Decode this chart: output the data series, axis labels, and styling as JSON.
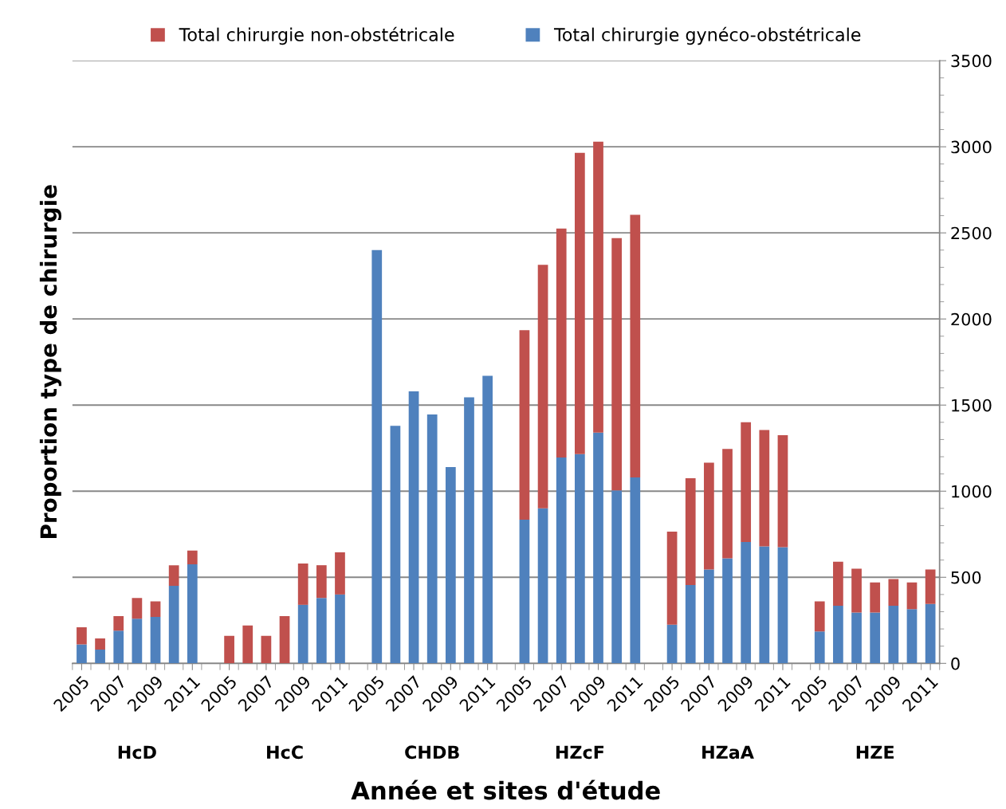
{
  "chart_data": {
    "type": "bar",
    "stacked": true,
    "xlabel": "Année et sites d'étude",
    "ylabel": "Proportion type de chirurgie",
    "categories": [
      "2005",
      null,
      "2007",
      null,
      "2009",
      null,
      "2011",
      null,
      "2005",
      null,
      "2007",
      null,
      "2009",
      null,
      "2011",
      null,
      "2005",
      null,
      "2007",
      null,
      "2009",
      null,
      "2011",
      null,
      "2005",
      null,
      "2007",
      null,
      "2009",
      null,
      "2011",
      null,
      "2005",
      null,
      "2007",
      null,
      "2009",
      null,
      "2011",
      null,
      "2005",
      null,
      "2007",
      null,
      "2009",
      null,
      "2011"
    ],
    "series": [
      {
        "name": "Total chirurgie gynéco-obstétricale",
        "color": "#4f81bd",
        "values": [
          110,
          80,
          190,
          260,
          270,
          450,
          575,
          null,
          0,
          0,
          0,
          0,
          340,
          380,
          400,
          null,
          2400,
          1380,
          1580,
          1445,
          1140,
          1545,
          1670,
          null,
          835,
          900,
          1195,
          1215,
          1340,
          1005,
          1080,
          null,
          225,
          455,
          545,
          610,
          705,
          680,
          675,
          null,
          185,
          335,
          295,
          295,
          335,
          315,
          345
        ]
      },
      {
        "name": "Total chirurgie non-obstétricale",
        "color": "#c0504d",
        "values": [
          100,
          65,
          85,
          120,
          90,
          120,
          80,
          null,
          160,
          220,
          160,
          275,
          240,
          190,
          245,
          null,
          0,
          0,
          0,
          0,
          0,
          0,
          0,
          null,
          1100,
          1415,
          1330,
          1750,
          1690,
          1465,
          1525,
          null,
          540,
          620,
          620,
          635,
          695,
          675,
          650,
          null,
          175,
          255,
          255,
          175,
          155,
          155,
          200
        ]
      }
    ],
    "annotations": [
      "HcD",
      "HcC",
      "CHDB",
      "HZcF",
      "HZaA",
      "HZE"
    ],
    "ylim": [
      0,
      3500
    ],
    "yticks": [
      0,
      500,
      1000,
      1500,
      2000,
      2500,
      3000,
      3500
    ],
    "grid": "y",
    "legend": "top"
  }
}
